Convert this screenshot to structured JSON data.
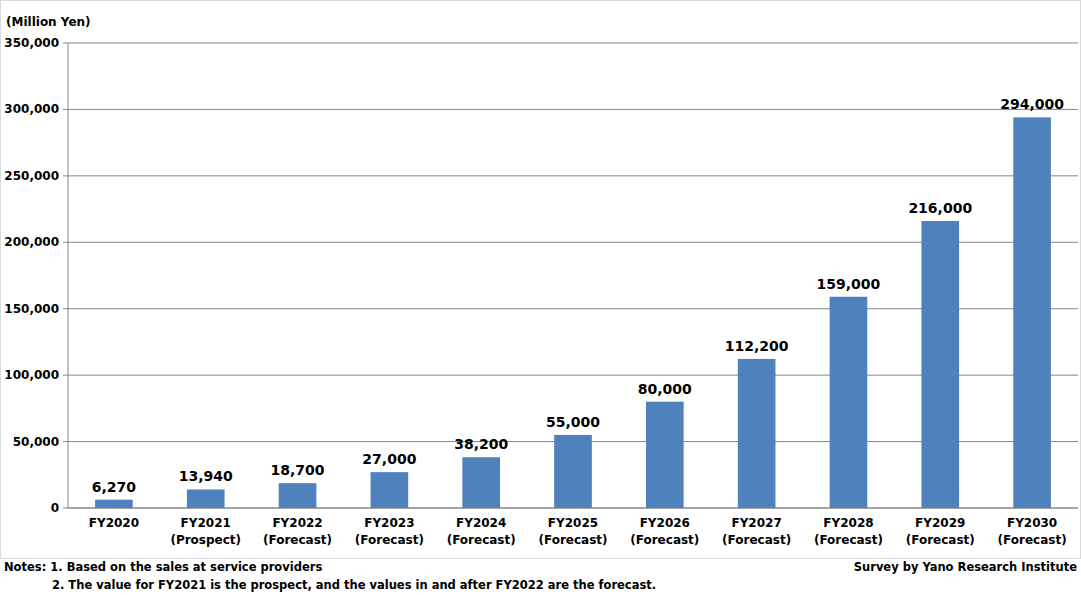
{
  "chart_data": {
    "type": "bar",
    "y_label": "(Million Yen)",
    "categories": [
      "FY2020",
      "FY2021 (Prospect)",
      "FY2022 (Forecast)",
      "FY2023 (Forecast)",
      "FY2024 (Forecast)",
      "FY2025 (Forecast)",
      "FY2026 (Forecast)",
      "FY2027 (Forecast)",
      "FY2028 (Forecast)",
      "FY2029 (Forecast)",
      "FY2030 (Forecast)"
    ],
    "values": [
      6270,
      13940,
      18700,
      27000,
      38200,
      55000,
      80000,
      112200,
      159000,
      216000,
      294000
    ],
    "value_labels": [
      "6,270",
      "13,940",
      "18,700",
      "27,000",
      "38,200",
      "55,000",
      "80,000",
      "112,200",
      "159,000",
      "216,000",
      "294,000"
    ],
    "color": "#4f81bd",
    "ylim": [
      0,
      350000
    ],
    "yticks": [
      0,
      {
        "value": 50000,
        "label": "50,000"
      },
      {
        "value": 100000,
        "label": "100,000"
      },
      {
        "value": 150000,
        "label": "150,000"
      },
      {
        "value": 200000,
        "label": "200,000"
      },
      {
        "value": 250000,
        "label": "250,000"
      },
      {
        "value": 300000,
        "label": "300,000"
      },
      {
        "value": 350000,
        "label": "350,000"
      }
    ],
    "grid": true,
    "data_labels": true,
    "annotations": [
      "Notes: 1. Based on the sales at service providers",
      "2. The value for FY2021 is the prospect, and the values in and after FY2022 are the forecast."
    ],
    "source": "Survey by Yano Research Institute"
  }
}
